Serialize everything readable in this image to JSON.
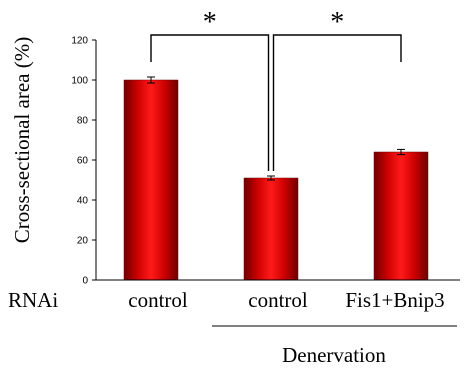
{
  "chart_data": {
    "type": "bar",
    "ylabel": "Cross-sectional area (%)",
    "row_label": "RNAi",
    "categories": [
      "control",
      "control",
      "Fis1+Bnip3"
    ],
    "values": [
      100,
      51,
      64
    ],
    "errors": [
      1.5,
      1.0,
      1.3
    ],
    "yticks": [
      0,
      20,
      40,
      60,
      80,
      100,
      120
    ],
    "ylim": [
      0,
      120
    ],
    "group_label": "Denervation",
    "significance": [
      {
        "from": 0,
        "to": 1,
        "label": "*"
      },
      {
        "from": 1,
        "to": 2,
        "label": "*"
      }
    ],
    "bar_color": "#e01010",
    "bar_edge_color": "#7a0000",
    "grid": false
  }
}
